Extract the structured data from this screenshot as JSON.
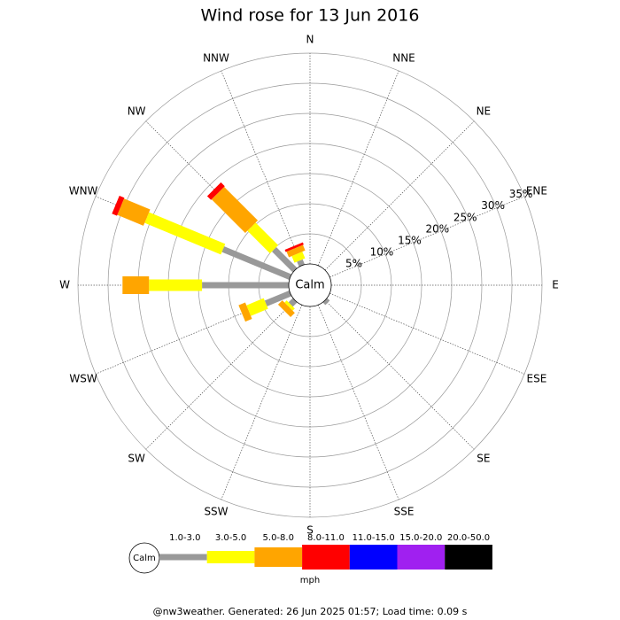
{
  "chart_data": {
    "type": "windrose",
    "title": "Wind rose for 13 Jun 2016",
    "calm_label": "Calm",
    "directions": [
      "N",
      "NNE",
      "NE",
      "ENE",
      "E",
      "ESE",
      "SE",
      "SSE",
      "S",
      "SSW",
      "SW",
      "WSW",
      "W",
      "WNW",
      "NW",
      "NNW"
    ],
    "rlim": [
      0,
      35
    ],
    "rticks": [
      {
        "value": 5,
        "label": "5%"
      },
      {
        "value": 10,
        "label": "10%"
      },
      {
        "value": 15,
        "label": "15%"
      },
      {
        "value": 20,
        "label": "20%"
      },
      {
        "value": 25,
        "label": "25%"
      },
      {
        "value": 30,
        "label": "30%"
      },
      {
        "value": 35,
        "label": "35%"
      }
    ],
    "series": [
      {
        "name": "1.0-3.0",
        "color": "#999999",
        "values": [
          0,
          0,
          0,
          0,
          0,
          0,
          0.6,
          0,
          0,
          0,
          1.0,
          4.4,
          14.4,
          12.1,
          4.9,
          0.9
        ]
      },
      {
        "name": "3.0-5.0",
        "color": "#ffff00",
        "values": [
          0,
          0,
          0,
          0,
          0,
          0,
          0,
          0,
          0,
          0,
          0.5,
          3.1,
          8.8,
          13.7,
          5.3,
          1.2
        ]
      },
      {
        "name": "5.0-8.0",
        "color": "#ffa500",
        "values": [
          0,
          0,
          0,
          0,
          0,
          0,
          0,
          0,
          0,
          0,
          1.0,
          1.2,
          4.4,
          4.7,
          7.9,
          1.0
        ]
      },
      {
        "name": "8.0-11.0",
        "color": "#ff0000",
        "values": [
          0,
          0,
          0,
          0,
          0,
          0,
          0,
          0,
          0,
          0,
          0,
          0,
          0,
          0.9,
          0.9,
          0.4
        ]
      },
      {
        "name": "11.0-15.0",
        "color": "#0000ff",
        "values": [
          0,
          0,
          0,
          0,
          0,
          0,
          0,
          0,
          0,
          0,
          0,
          0,
          0,
          0,
          0,
          0
        ]
      },
      {
        "name": "15.0-20.0",
        "color": "#a020f0",
        "values": [
          0,
          0,
          0,
          0,
          0,
          0,
          0,
          0,
          0,
          0,
          0,
          0,
          0,
          0,
          0,
          0
        ]
      },
      {
        "name": "20.0-50.0",
        "color": "#000000",
        "values": [
          0,
          0,
          0,
          0,
          0,
          0,
          0,
          0,
          0,
          0,
          0,
          0,
          0,
          0,
          0,
          0
        ]
      }
    ],
    "unit": "mph",
    "footer": "@nw3weather. Generated: 26 Jun 2025 01:57; Load time: 0.09 s"
  }
}
